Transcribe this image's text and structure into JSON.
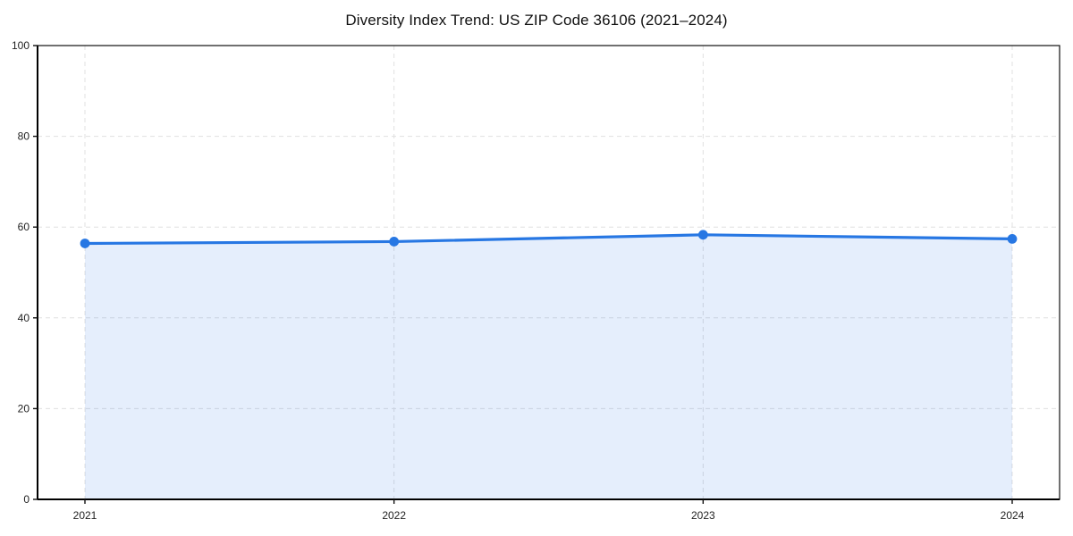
{
  "page": {
    "background_color": "#ffffff"
  },
  "chart_data": {
    "type": "area",
    "title": "Diversity Index Trend: US ZIP Code 36106 (2021–2024)",
    "x": [
      "2021",
      "2022",
      "2023",
      "2024"
    ],
    "series": [
      {
        "name": "Diversity Index",
        "values": [
          56.4,
          56.8,
          58.3,
          57.4
        ]
      }
    ],
    "xlabel": "",
    "ylabel": "",
    "ylim": [
      0,
      100
    ],
    "yticks": [
      0,
      20,
      40,
      60,
      80,
      100
    ],
    "grid": true,
    "grid_style": "dashed",
    "legend_position": "none",
    "line_color": "#2777e3",
    "marker_color": "#2777e3",
    "fill_color": "rgba(39,119,227,0.12)",
    "grid_color": "#e0e0e0",
    "axis_color": "#111111",
    "tick_label_color": "#222222"
  }
}
